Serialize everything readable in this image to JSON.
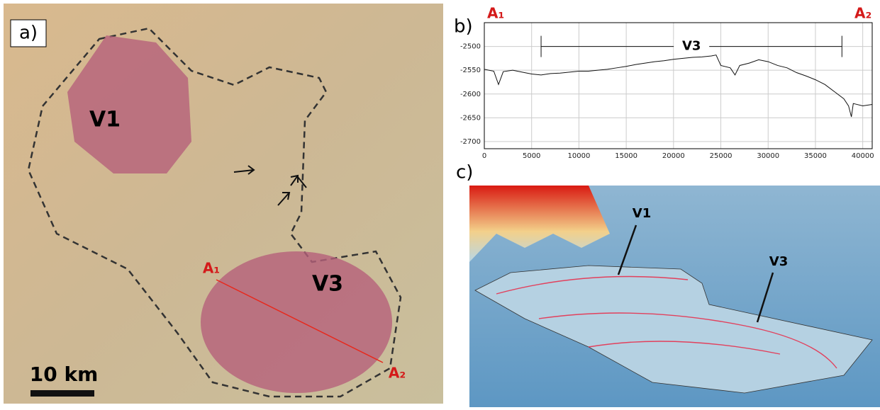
{
  "panel_a": {
    "label": "a)",
    "features": [
      "V1",
      "V3"
    ],
    "scale": "10 km",
    "profile_start": "A₁",
    "profile_end": "A₂"
  },
  "chart_data": {
    "type": "line",
    "label": "b)",
    "start_label": "A₁",
    "end_label": "A₂",
    "x": [
      0,
      1000,
      1500,
      2000,
      3000,
      4000,
      5000,
      6000,
      7000,
      8000,
      9000,
      10000,
      11000,
      12000,
      13000,
      14000,
      15000,
      16000,
      17000,
      18000,
      19000,
      20000,
      21000,
      22000,
      23000,
      24000,
      24500,
      25000,
      26000,
      26500,
      27000,
      28000,
      29000,
      30000,
      31000,
      32000,
      33000,
      34000,
      35000,
      36000,
      37000,
      38000,
      38500,
      38800,
      39000,
      40000,
      41000
    ],
    "values": [
      -2548,
      -2552,
      -2580,
      -2553,
      -2550,
      -2554,
      -2558,
      -2560,
      -2557,
      -2556,
      -2554,
      -2552,
      -2552,
      -2550,
      -2548,
      -2545,
      -2542,
      -2538,
      -2535,
      -2532,
      -2530,
      -2527,
      -2525,
      -2523,
      -2522,
      -2520,
      -2518,
      -2540,
      -2545,
      -2560,
      -2540,
      -2535,
      -2528,
      -2532,
      -2540,
      -2545,
      -2555,
      -2562,
      -2570,
      -2580,
      -2595,
      -2610,
      -2625,
      -2648,
      -2620,
      -2625,
      -2622
    ],
    "color": "#111111",
    "xlim": [
      0,
      41000
    ],
    "ylim": [
      -2715,
      -2450
    ],
    "xticks": [
      0,
      5000,
      10000,
      15000,
      20000,
      25000,
      30000,
      35000,
      40000
    ],
    "yticks": [
      -2700,
      -2650,
      -2600,
      -2550,
      -2500
    ],
    "grid": true,
    "annotation": {
      "text": "V3",
      "x": [
        6000,
        37800
      ],
      "y": -2500
    }
  },
  "panel_c": {
    "label": "c)",
    "features": [
      "V1",
      "V3"
    ]
  }
}
